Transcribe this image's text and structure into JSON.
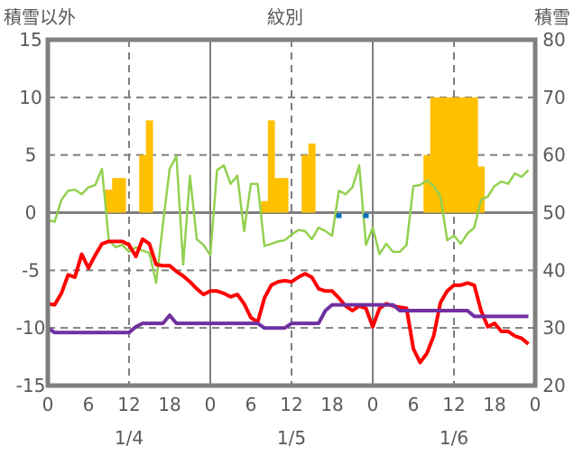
{
  "chart_data": {
    "type": "line",
    "title": "紋別",
    "left_axis_label": "積雪以外",
    "right_axis_label": "積雪",
    "left_ylim": [
      -15,
      15
    ],
    "left_ticks": [
      "15",
      "10",
      "5",
      "0",
      "-5",
      "-10",
      "-15"
    ],
    "right_ylim": [
      20,
      80
    ],
    "right_ticks": [
      "80",
      "70",
      "60",
      "50",
      "40",
      "30",
      "20"
    ],
    "x_hours": 72,
    "x_tick_labels": [
      "0",
      "6",
      "12",
      "18",
      "0",
      "6",
      "12",
      "18",
      "0",
      "6",
      "12",
      "18",
      "0"
    ],
    "date_labels": [
      "1/4",
      "1/5",
      "1/6"
    ],
    "grid": "dashed",
    "colors": {
      "green": "#92d050",
      "red": "#ff0000",
      "purple": "#7030a0",
      "bars": "#ffc000",
      "markers": "#0070c0",
      "axis": "#7f7f7f"
    },
    "bars": {
      "hours": [
        9,
        10,
        11,
        14,
        15,
        32,
        33,
        34,
        35,
        38,
        39,
        56,
        57,
        58,
        59,
        60,
        61,
        62,
        63,
        64
      ],
      "values": [
        2,
        3,
        3,
        5,
        8,
        1,
        8,
        3,
        3,
        5,
        6,
        5,
        10,
        10,
        10,
        10,
        10,
        10,
        10,
        4
      ]
    },
    "markers": {
      "hours": [
        43,
        47
      ],
      "values": [
        -0.4,
        -0.4
      ]
    },
    "series": [
      {
        "name": "green",
        "color": "#92d050",
        "values": [
          -0.6,
          -0.8,
          1.1,
          1.9,
          2.0,
          1.6,
          2.2,
          2.4,
          3.8,
          -2.4,
          -3.0,
          -2.8,
          -3.4,
          -3.0,
          -3.3,
          -3.5,
          -6.1,
          -1.0,
          3.8,
          4.9,
          -4.5,
          3.2,
          -2.3,
          -2.8,
          -3.7,
          3.7,
          4.1,
          2.5,
          3.2,
          -1.6,
          2.5,
          2.5,
          -2.9,
          -2.7,
          -2.5,
          -2.4,
          -1.9,
          -1.5,
          -1.6,
          -2.3,
          -1.3,
          -1.6,
          -2.0,
          1.9,
          1.6,
          2.2,
          4.1,
          -2.8,
          -1.3,
          -3.6,
          -2.7,
          -3.4,
          -3.4,
          -2.8,
          2.3,
          2.4,
          2.8,
          2.3,
          1.4,
          -2.4,
          -2.0,
          -2.7,
          -1.8,
          -1.3,
          1.1,
          1.4,
          2.3,
          2.7,
          2.5,
          3.4,
          3.1,
          3.7
        ]
      },
      {
        "name": "red",
        "color": "#ff0000",
        "values": [
          -7.9,
          -8.0,
          -7.0,
          -5.4,
          -5.6,
          -3.6,
          -4.8,
          -3.7,
          -2.7,
          -2.5,
          -2.5,
          -2.5,
          -2.8,
          -3.8,
          -2.3,
          -2.7,
          -4.5,
          -4.6,
          -4.6,
          -5.1,
          -5.5,
          -6.0,
          -6.6,
          -7.1,
          -6.8,
          -6.8,
          -7.0,
          -7.3,
          -7.1,
          -7.9,
          -9.1,
          -9.5,
          -7.4,
          -6.3,
          -6.0,
          -5.9,
          -6.0,
          -5.6,
          -5.3,
          -5.6,
          -6.6,
          -6.8,
          -6.8,
          -7.4,
          -8.1,
          -8.5,
          -8.1,
          -8.3,
          -9.9,
          -8.3,
          -7.9,
          -8.1,
          -8.2,
          -8.3,
          -11.8,
          -13.0,
          -12.2,
          -10.7,
          -7.8,
          -6.8,
          -6.3,
          -6.3,
          -6.1,
          -6.3,
          -8.5,
          -9.9,
          -9.6,
          -10.3,
          -10.3,
          -10.7,
          -10.9,
          -11.4
        ]
      },
      {
        "name": "purple",
        "color": "#7030a0",
        "values": [
          -10.0,
          -10.4,
          -10.4,
          -10.4,
          -10.4,
          -10.4,
          -10.4,
          -10.4,
          -10.4,
          -10.4,
          -10.4,
          -10.4,
          -10.4,
          -9.9,
          -9.6,
          -9.6,
          -9.6,
          -9.6,
          -8.9,
          -9.6,
          -9.6,
          -9.6,
          -9.6,
          -9.6,
          -9.6,
          -9.6,
          -9.6,
          -9.6,
          -9.6,
          -9.6,
          -9.6,
          -9.6,
          -10.0,
          -10.0,
          -10.0,
          -10.0,
          -9.6,
          -9.6,
          -9.6,
          -9.6,
          -9.6,
          -8.5,
          -8.0,
          -8.0,
          -8.0,
          -8.0,
          -8.0,
          -8.0,
          -8.0,
          -8.0,
          -8.0,
          -8.0,
          -8.5,
          -8.5,
          -8.5,
          -8.5,
          -8.5,
          -8.5,
          -8.5,
          -8.5,
          -8.5,
          -8.5,
          -8.5,
          -9.0,
          -9.0,
          -9.0,
          -9.0,
          -9.0,
          -9.0,
          -9.0,
          -9.0,
          -9.0
        ]
      }
    ]
  }
}
